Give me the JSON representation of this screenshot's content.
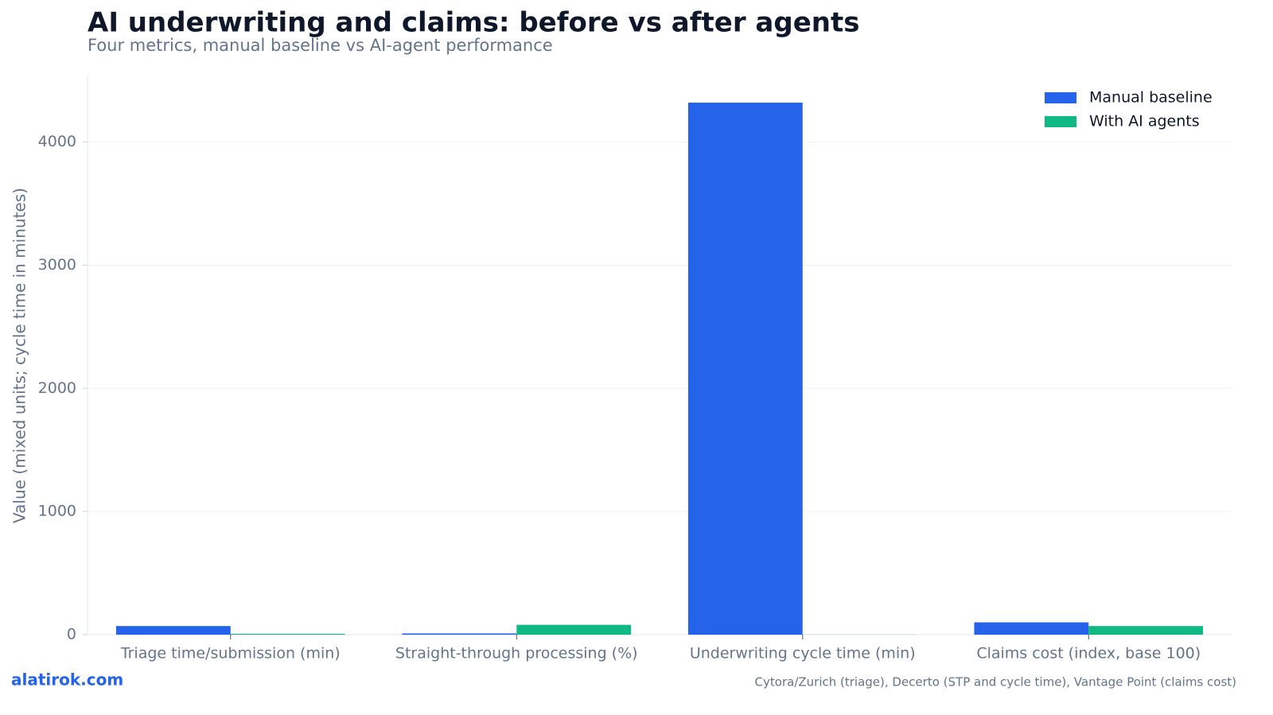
{
  "chart_data": {
    "type": "bar",
    "title": "AI underwriting and claims: before vs after agents",
    "subtitle": "Four metrics, manual baseline vs AI-agent performance",
    "y_label": "Value (mixed units; cycle time in minutes)",
    "categories": [
      "Triage time/submission (min)",
      "Straight-through processing (%)",
      "Underwriting cycle time (min)",
      "Claims cost (index, base 100)"
    ],
    "series": [
      {
        "name": "Manual baseline",
        "color": "#2563eb",
        "values": [
          70,
          10,
          4320,
          100
        ]
      },
      {
        "name": "With AI agents",
        "color": "#10b981",
        "values": [
          7,
          80,
          1,
          70
        ]
      }
    ],
    "ylim": [
      0,
      4540
    ],
    "yticks": [
      0,
      1000,
      2000,
      3000,
      4000
    ],
    "grid": true,
    "legend": "upper right",
    "brand": "alatirok.com",
    "source": "Cytora/Zurich (triage), Decerto (STP and cycle time), Vantage Point (claims cost)"
  }
}
